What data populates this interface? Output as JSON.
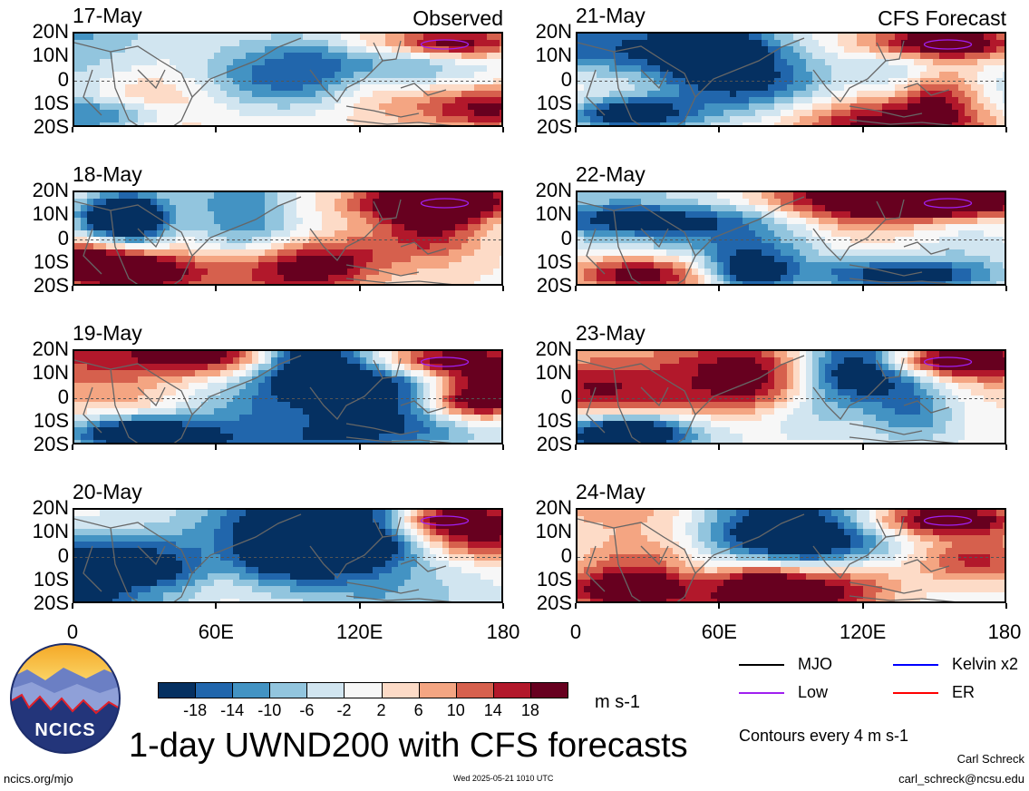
{
  "panels": [
    {
      "date": "17-May",
      "tag": "Observed",
      "col": 0,
      "row": 0,
      "seed": 1
    },
    {
      "date": "18-May",
      "tag": "",
      "col": 0,
      "row": 1,
      "seed": 2
    },
    {
      "date": "19-May",
      "tag": "",
      "col": 0,
      "row": 2,
      "seed": 3
    },
    {
      "date": "20-May",
      "tag": "",
      "col": 0,
      "row": 3,
      "seed": 4
    },
    {
      "date": "21-May",
      "tag": "CFS Forecast",
      "col": 1,
      "row": 0,
      "seed": 5
    },
    {
      "date": "22-May",
      "tag": "",
      "col": 1,
      "row": 1,
      "seed": 6
    },
    {
      "date": "23-May",
      "tag": "",
      "col": 1,
      "row": 2,
      "seed": 7
    },
    {
      "date": "24-May",
      "tag": "",
      "col": 1,
      "row": 3,
      "seed": 8
    }
  ],
  "axes": {
    "y_ticks": [
      "20N",
      "10N",
      "0",
      "10S",
      "20S"
    ],
    "x_ticks": [
      "0",
      "60E",
      "120E",
      "180"
    ]
  },
  "colorbar": {
    "labels": [
      "-18",
      "-14",
      "-10",
      "-6",
      "-2",
      "2",
      "6",
      "10",
      "14",
      "18"
    ],
    "colors": [
      "#053061",
      "#2166ac",
      "#4393c3",
      "#92c5de",
      "#d1e5f0",
      "#f7f7f7",
      "#fddbc7",
      "#f4a582",
      "#d6604d",
      "#b2182b",
      "#67001f"
    ],
    "units": "m s-1"
  },
  "legend": {
    "items": [
      {
        "label": "MJO",
        "color": "#000000"
      },
      {
        "label": "Kelvin x2",
        "color": "#0000ff"
      },
      {
        "label": "Low",
        "color": "#a020f0"
      },
      {
        "label": "ER",
        "color": "#ff0000"
      }
    ],
    "contour_note": "Contours every 4 m s-1"
  },
  "title": "1-day UWND200 with CFS forecasts",
  "logo_text": "NCICS",
  "footer": {
    "left": "ncics.org/mjo",
    "center": "Wed 2025-05-21 1010 UTC",
    "author": "Carl Schreck",
    "email": "carl_schreck@ncsu.edu"
  }
}
